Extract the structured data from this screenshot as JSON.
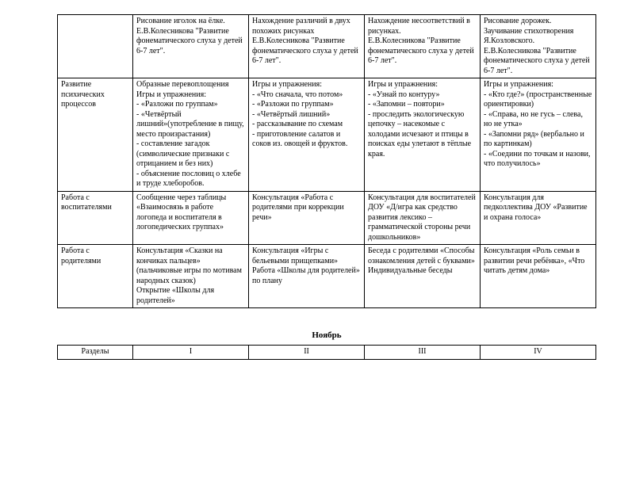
{
  "main_table": {
    "columns_css": [
      "col0",
      "col1",
      "col2",
      "col3",
      "col4"
    ],
    "rows": [
      {
        "label": "",
        "cells": [
          "Рисование иголок  на ёлке. Е.В.Колесникова \"Развитие фонематического слуха у детей 6-7 лет\".",
          "Нахождение различий в двух похожих рисунках\nЕ.В.Колесникова \"Развитие фонематического слуха у детей 6-7 лет\".",
          "Нахождение несоответствий в рисунках.\nЕ.В.Колесникова \"Развитие фонематического слуха у детей 6-7 лет\".",
          "Рисование дорожек.\nЗаучивание стихотворения Я.Козловского.\nЕ.В.Колесникова \"Развитие фонематического слуха у детей 6-7 лет\"."
        ]
      },
      {
        "label": "Развитие психических процессов",
        "cells": [
          "Образные  перевоплощения\nИгры и упражнения:\n- «Разложи по группам»\n- «Четвёртый лишний»(употребление в пищу, место произрастания)\n- составление загадок (символические признаки с отрицанием и без них)\n- объяснение пословиц о хлебе и труде хлеборобов.",
          "Игры и упражнения:\n- «Что сначала, что потом»\n- «Разложи по группам»\n- «Четвёртый лишний»\n- рассказывание по схемам\n- приготовление салатов и соков из. овощей и фруктов.",
          "Игры и упражнения:\n- «Узнай по контуру»\n- «Запомни – повтори»\n- проследить экологическую цепочку – насекомые с холодами исчезают и птицы в поисках еды улетают в тёплые края.",
          "Игры и упражнения:\n- «Кто где?» (пространственные ориентировки)\n- «Справа, но не гусь – слева, но не утка»\n- «Запомни ряд» (вербально и по картинкам)\n- «Соедини по точкам и назови, что получилось»"
        ]
      },
      {
        "label": "Работа с воспитателями",
        "cells": [
          "Сообщение через таблицы «Взаимосвязь в работе логопеда и воспитателя в логопедических группах»",
          "Консультация «Работа с родителями при коррекции речи»",
          "Консультация для воспитателей ДОУ «Д/игра как средство развития лексико – грамматической стороны речи дошкольников»",
          "Консультация для педколлектива ДОУ «Развитие и охрана голоса»"
        ]
      },
      {
        "label": "Работа с родителями",
        "cells": [
          "Консультация «Сказки на кончиках пальцев» (пальчиковые игры по мотивам народных сказок)\nОткрытие «Школы для родителей»",
          "Консультация «Игры с бельевыми прищепками»\nРабота «Школы для родителей» по плану",
          "Беседа с родителями «Способы ознакомления детей с буквами»\nИндивидуальные беседы",
          "Консультация «Роль семьи в развитии речи ребёнка», «Что читать детям дома»"
        ]
      }
    ]
  },
  "month_title": "Ноябрь",
  "header_table": {
    "cells": [
      "Разделы",
      "I",
      "II",
      "III",
      "IV"
    ]
  }
}
